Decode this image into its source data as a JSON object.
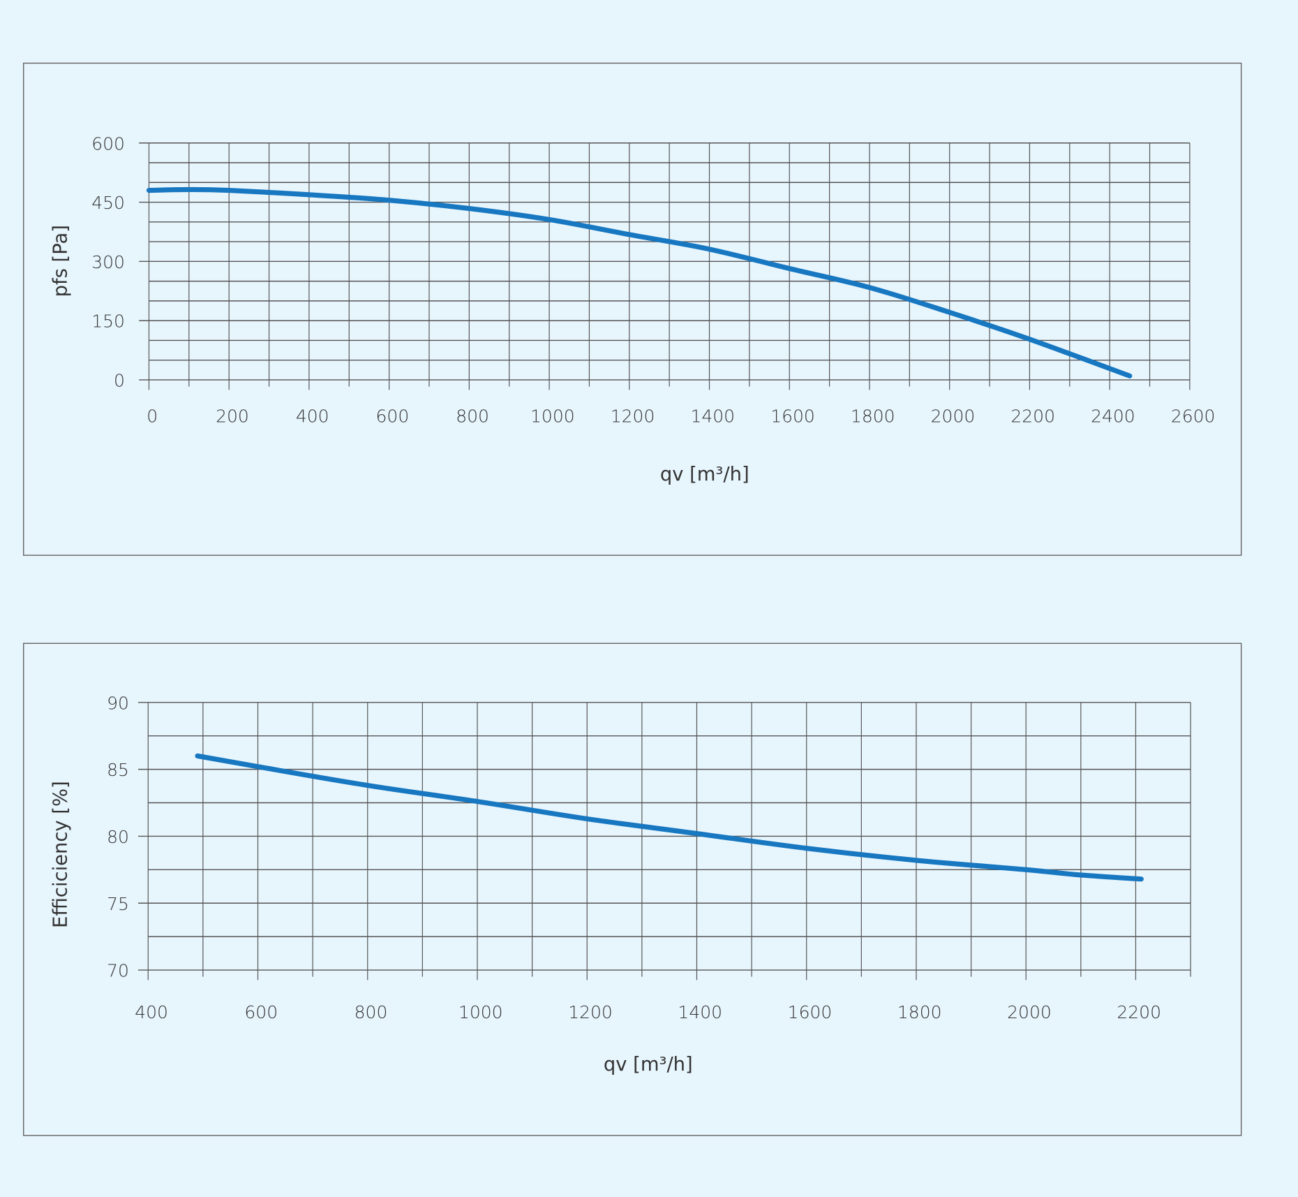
{
  "colors": {
    "background": "#e7f5fd",
    "grid": "#555555",
    "curve": "#1777c0",
    "frame": "#666666"
  },
  "chart_data": [
    {
      "type": "line",
      "title": "",
      "xlabel": "qv [m³/h]",
      "ylabel": "pfs [Pa]",
      "xlim": [
        0,
        2600
      ],
      "ylim": [
        0,
        600
      ],
      "xticks": [
        0,
        200,
        400,
        600,
        800,
        1000,
        1200,
        1400,
        1600,
        1800,
        2000,
        2200,
        2400,
        2600
      ],
      "yticks": [
        0,
        150,
        300,
        450,
        600
      ],
      "x_grid_step": 100,
      "y_grid_step": 50,
      "grid": true,
      "series": [
        {
          "name": "pfs",
          "x": [
            0,
            100,
            200,
            400,
            600,
            800,
            1000,
            1200,
            1400,
            1600,
            1800,
            2000,
            2200,
            2450
          ],
          "y": [
            480,
            482,
            480,
            469,
            455,
            434,
            406,
            368,
            331,
            282,
            234,
            171,
            103,
            10
          ]
        }
      ]
    },
    {
      "type": "line",
      "title": "",
      "xlabel": "qv [m³/h]",
      "ylabel": "Efficiciency [%]",
      "xlim": [
        400,
        2300
      ],
      "ylim": [
        70,
        90
      ],
      "xticks": [
        400,
        600,
        800,
        1000,
        1200,
        1400,
        1600,
        1800,
        2000,
        2200
      ],
      "yticks": [
        70,
        75,
        80,
        85,
        90
      ],
      "x_grid_step": 100,
      "y_grid_step": 2.5,
      "grid": true,
      "series": [
        {
          "name": "Efficiency",
          "x": [
            490,
            600,
            800,
            1000,
            1200,
            1400,
            1600,
            1800,
            2000,
            2100,
            2210
          ],
          "y": [
            86.0,
            85.2,
            83.8,
            82.6,
            81.3,
            80.2,
            79.1,
            78.2,
            77.5,
            77.1,
            76.8
          ]
        }
      ]
    }
  ]
}
